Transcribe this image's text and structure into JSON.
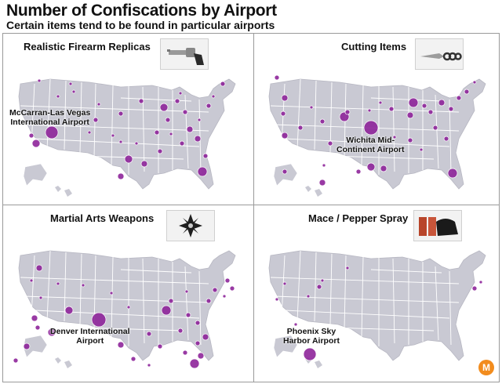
{
  "header": {
    "title": "Number of Confiscations by Airport",
    "subtitle": "Certain items tend to be found in particular airports"
  },
  "colors": {
    "land": "#c9c9d3",
    "state_lines": "#ffffff",
    "bubble": "#8b1f97",
    "logo": "#f28c1e"
  },
  "panels": [
    {
      "title": "Realistic Firearm Replicas",
      "image_icon": "revolver-photo",
      "annotation": "McCarran-Las Vegas International Airport",
      "annotation_lines": [
        "McCarran-Las Vegas",
        "International Airport"
      ]
    },
    {
      "title": "Cutting Items",
      "image_icon": "knife-photo",
      "annotation": "Wichita Mid-Continent Airport",
      "annotation_lines": [
        "Wichita Mid-",
        "Continent Airport"
      ]
    },
    {
      "title": "Martial Arts Weapons",
      "image_icon": "throwing-star-photo",
      "annotation": "Denver International Airport",
      "annotation_lines": [
        "Denver International",
        "Airport"
      ]
    },
    {
      "title": "Mace / Pepper Spray",
      "image_icon": "pepper-spray-photo",
      "annotation": "Phoenix Sky Harbor Airport",
      "annotation_lines": [
        "Phoenix Sky",
        "Harbor Airport"
      ]
    }
  ],
  "logo": {
    "letter": "M"
  }
}
